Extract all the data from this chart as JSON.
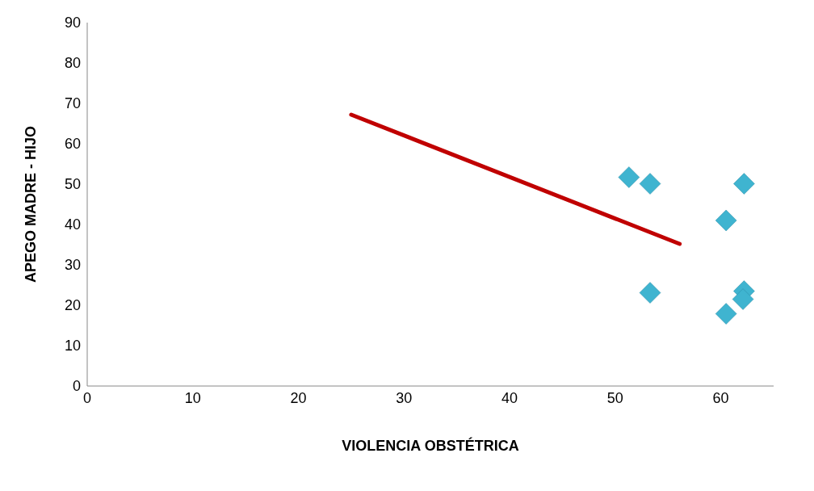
{
  "chart_data": {
    "type": "scatter",
    "xlabel": "VIOLENCIA OBSTÉTRICA",
    "ylabel": "APEGO MADRE - HIJO",
    "xlim": [
      0,
      65
    ],
    "xticks": [
      0,
      10,
      20,
      30,
      40,
      50,
      60
    ],
    "ylim": [
      0,
      90
    ],
    "yticks": [
      0,
      10,
      20,
      30,
      40,
      50,
      60,
      70,
      80,
      90
    ],
    "grid": false,
    "legend": false,
    "marker": "diamond",
    "series": [
      {
        "type": "scatter",
        "color": "#3fb4d0",
        "x": [
          51.3,
          53.3,
          53.3,
          60.5,
          60.5,
          62.2,
          62.2,
          62.1
        ],
        "values": [
          51.7,
          50.1,
          23.1,
          41,
          17.9,
          50.1,
          23.5,
          21.5
        ]
      },
      {
        "type": "line",
        "color": "#c00000",
        "marker": "none",
        "x": [
          25,
          56.1
        ],
        "values": [
          67.2,
          35.2
        ]
      }
    ]
  }
}
